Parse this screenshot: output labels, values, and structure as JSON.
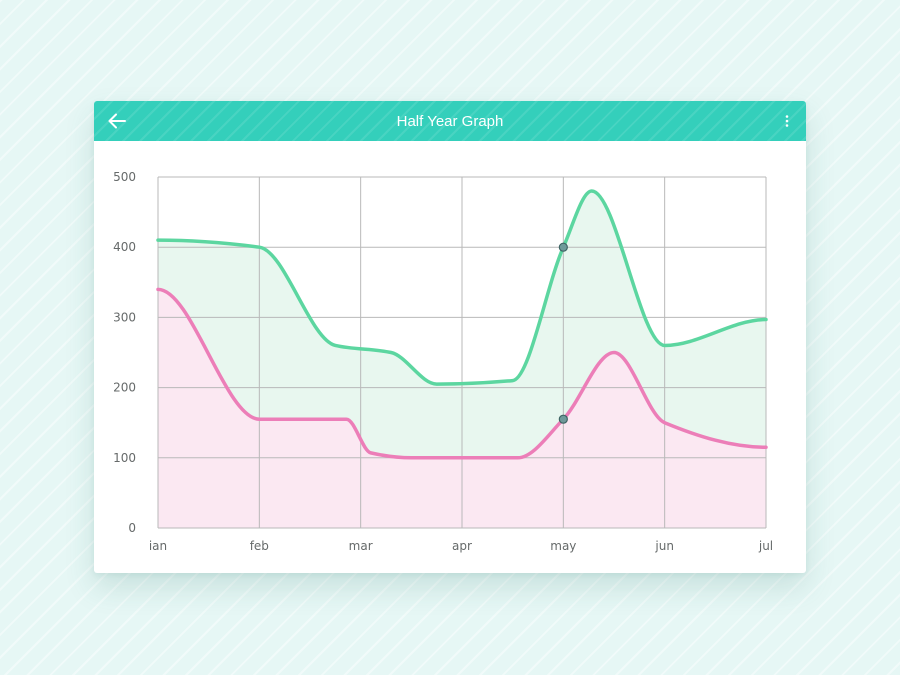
{
  "header": {
    "title": "Half Year Graph",
    "back_icon": "arrow-left-icon",
    "menu_icon": "more-vert-icon"
  },
  "colors": {
    "header": "#34cfbb",
    "green_line": "#5cd6a0",
    "green_fill": "#e8f7ef",
    "pink_line": "#ec7eb8",
    "pink_fill": "#fbe8f2",
    "grid": "#b9b9b9",
    "marker": "#6f9a9a"
  },
  "chart_data": {
    "type": "area",
    "title": "Half Year Graph",
    "categories": [
      "ian",
      "feb",
      "mar",
      "apr",
      "may",
      "jun",
      "jul"
    ],
    "ylim": [
      0,
      500
    ],
    "yticks": [
      0,
      100,
      200,
      300,
      400,
      500
    ],
    "grid": true,
    "curve": "smooth",
    "series": [
      {
        "name": "green",
        "color": "#5cd6a0",
        "fill": "#e8f7ef",
        "points": [
          [
            0,
            410
          ],
          [
            1,
            400
          ],
          [
            1.75,
            260
          ],
          [
            2.3,
            250
          ],
          [
            2.75,
            205
          ],
          [
            3.5,
            210
          ],
          [
            4,
            400
          ],
          [
            4.28,
            480
          ],
          [
            5,
            260
          ],
          [
            6,
            297
          ]
        ],
        "highlight": {
          "x": 4,
          "y": 400
        }
      },
      {
        "name": "pink",
        "color": "#ec7eb8",
        "fill": "#fbe8f2",
        "points": [
          [
            0,
            340
          ],
          [
            1,
            155
          ],
          [
            1.86,
            155
          ],
          [
            2.1,
            107
          ],
          [
            2.5,
            100
          ],
          [
            3,
            100
          ],
          [
            3.55,
            100
          ],
          [
            4,
            155
          ],
          [
            4.5,
            250
          ],
          [
            5,
            150
          ],
          [
            6,
            115
          ]
        ],
        "highlight": {
          "x": 4,
          "y": 155
        }
      }
    ]
  }
}
